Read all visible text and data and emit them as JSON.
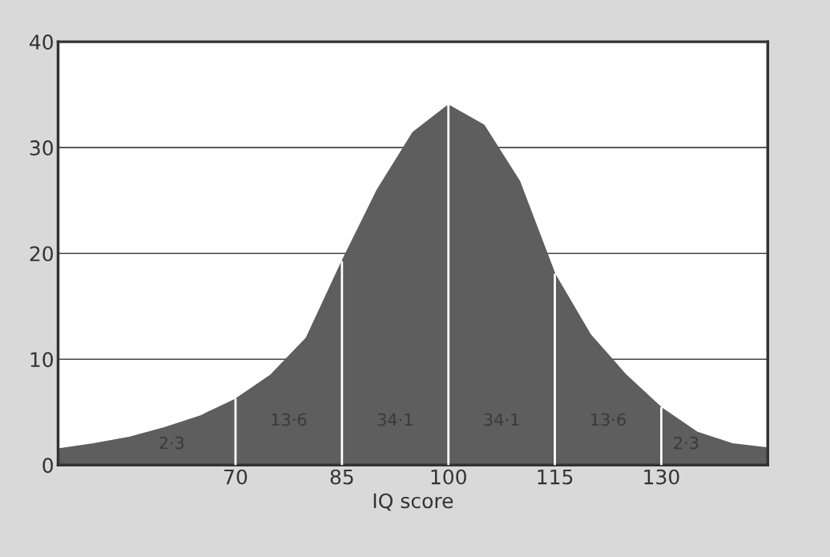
{
  "chart_data": {
    "type": "area",
    "xlabel": "IQ score",
    "x": [
      45,
      50,
      55,
      60,
      65,
      70,
      75,
      80,
      85,
      90,
      95,
      100,
      105,
      110,
      115,
      120,
      125,
      130,
      135,
      140,
      145
    ],
    "series": [
      {
        "color": "#5e5e5e",
        "values": [
          1.5,
          2.0,
          2.6,
          3.5,
          4.6,
          6.2,
          8.5,
          12.0,
          19.2,
          26.0,
          31.4,
          34.0,
          32.1,
          26.8,
          18.0,
          12.3,
          8.5,
          5.4,
          3.1,
          2.0,
          1.6
        ]
      }
    ],
    "xlim": [
      45,
      145
    ],
    "ylim": [
      0,
      40
    ],
    "xticks": [
      70,
      85,
      100,
      115,
      130
    ],
    "yticks": [
      0,
      10,
      20,
      30,
      40
    ],
    "grid": "y",
    "ref_lines": [
      {
        "axis": "x",
        "value": 70,
        "color": "#ffffff"
      },
      {
        "axis": "x",
        "value": 85,
        "color": "#ffffff"
      },
      {
        "axis": "x",
        "value": 100,
        "color": "#ffffff"
      },
      {
        "axis": "x",
        "value": 115,
        "color": "#ffffff"
      },
      {
        "axis": "x",
        "value": 130,
        "color": "#ffffff"
      }
    ],
    "annotations": [
      "2·3",
      "13·6",
      "34·1",
      "34·1",
      "13·6",
      "2·3"
    ]
  }
}
